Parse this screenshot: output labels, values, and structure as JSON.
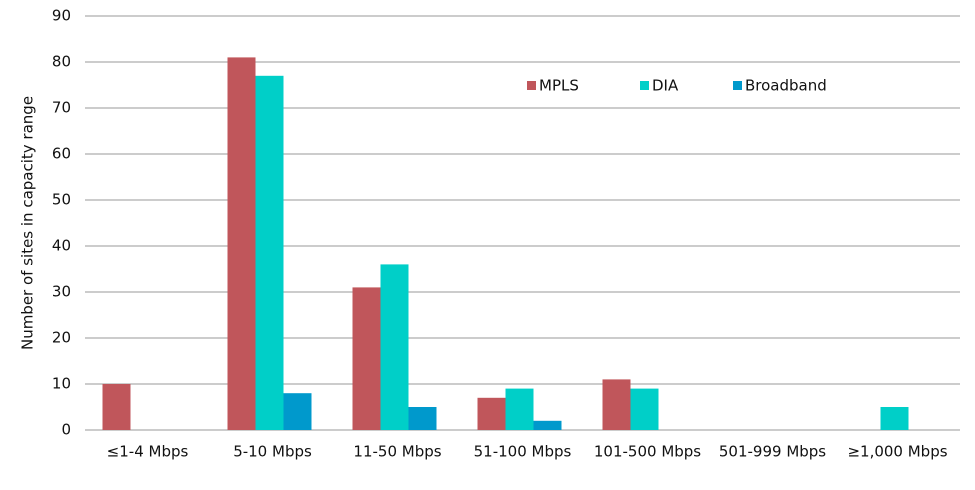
{
  "chart_data": {
    "type": "bar",
    "y_label": "Number of sites in capacity range",
    "categories": [
      "≤1-4 Mbps",
      "5-10 Mbps",
      "11-50 Mbps",
      "51-100 Mbps",
      "101-500 Mbps",
      "501-999 Mbps",
      "≥1,000 Mbps"
    ],
    "series": [
      {
        "name": "MPLS",
        "color": "#c0565b",
        "values": [
          10,
          81,
          31,
          7,
          11,
          0,
          0
        ]
      },
      {
        "name": "DIA",
        "color": "#00cfc8",
        "values": [
          0,
          77,
          36,
          9,
          9,
          0,
          5
        ]
      },
      {
        "name": "Broadband",
        "color": "#0099cc",
        "values": [
          0,
          8,
          5,
          2,
          0,
          0,
          0
        ]
      }
    ],
    "ylim": [
      0,
      90
    ],
    "yticks": [
      0,
      10,
      20,
      30,
      40,
      50,
      60,
      70,
      80,
      90
    ],
    "grid": true,
    "legend": "top"
  }
}
